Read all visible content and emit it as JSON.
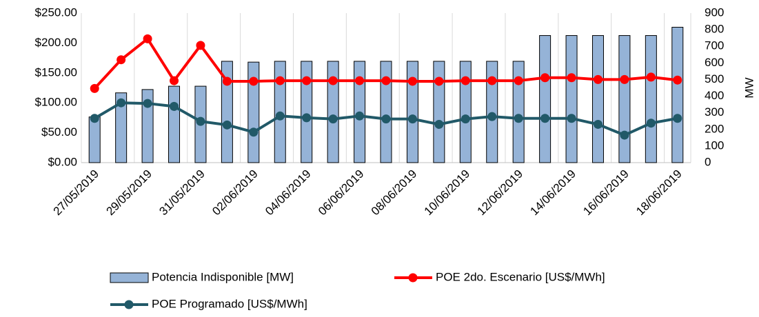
{
  "chart_data": {
    "type": "bar-line",
    "categories": [
      "27/05/2019",
      null,
      "29/05/2019",
      null,
      "31/05/2019",
      null,
      "02/06/2019",
      null,
      "04/06/2019",
      null,
      "06/06/2019",
      null,
      "08/06/2019",
      null,
      "10/06/2019",
      null,
      "12/06/2019",
      null,
      "14/06/2019",
      null,
      "16/06/2019",
      null,
      "18/06/2019"
    ],
    "series": [
      {
        "name": "Potencia Indisponible [MW]",
        "type": "bar",
        "axis": "y2",
        "color": "#95b3d7",
        "values": [
          275,
          420,
          440,
          460,
          460,
          610,
          605,
          610,
          610,
          610,
          610,
          610,
          610,
          610,
          610,
          610,
          610,
          765,
          765,
          765,
          765,
          765,
          815
        ]
      },
      {
        "name": "POE 2do. Escenario [US$/MWh]",
        "type": "line",
        "color": "#ff0000",
        "values": [
          124,
          172,
          207,
          137,
          196,
          136,
          136,
          137,
          137,
          137,
          137,
          137,
          136,
          136,
          137,
          137,
          137,
          142,
          142,
          139,
          139,
          143,
          138
        ]
      },
      {
        "name": "POE Programado [US$/MWh]",
        "type": "line",
        "color": "#215968",
        "values": [
          74,
          100,
          99,
          94,
          69,
          63,
          51,
          78,
          75,
          73,
          78,
          73,
          73,
          64,
          73,
          77,
          74,
          74,
          74,
          64,
          46,
          66,
          74
        ]
      }
    ],
    "ylim": [
      0,
      250
    ],
    "yticks": [
      {
        "value": 0,
        "label": "$0.00"
      },
      {
        "value": 50,
        "label": "$50.00"
      },
      {
        "value": 100,
        "label": "$100.00"
      },
      {
        "value": 150,
        "label": "$150.00"
      },
      {
        "value": 200,
        "label": "$200.00"
      },
      {
        "value": 250,
        "label": "$250.00"
      }
    ],
    "y2lim": [
      0,
      900
    ],
    "y2ticks": [
      0,
      100,
      200,
      300,
      400,
      500,
      600,
      700,
      800,
      900
    ],
    "y2label": "MW",
    "grid": "x",
    "legend": "bottom"
  }
}
